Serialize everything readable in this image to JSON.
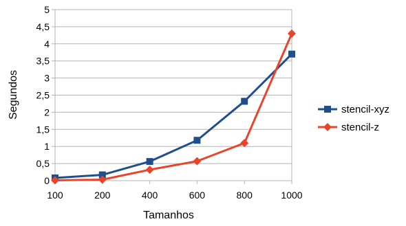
{
  "chart_data": {
    "type": "line",
    "title": "",
    "xlabel": "Tamanhos",
    "ylabel": "Segundos",
    "x": [
      "100",
      "200",
      "400",
      "600",
      "800",
      "1000"
    ],
    "ylim": [
      0,
      5
    ],
    "yticks": [
      "0",
      "0,5",
      "1",
      "1,5",
      "2",
      "2,5",
      "3",
      "3,5",
      "4",
      "4,5",
      "5"
    ],
    "grid": "horizontal",
    "legend_position": "right",
    "series": [
      {
        "name": "stencil-xyz",
        "color": "#1f4e8c",
        "marker": "square",
        "values": [
          0.08,
          0.17,
          0.56,
          1.18,
          2.32,
          3.7
        ]
      },
      {
        "name": "stencil-z",
        "color": "#e8442a",
        "marker": "diamond",
        "values": [
          0.01,
          0.03,
          0.32,
          0.57,
          1.1,
          4.3
        ]
      }
    ]
  }
}
